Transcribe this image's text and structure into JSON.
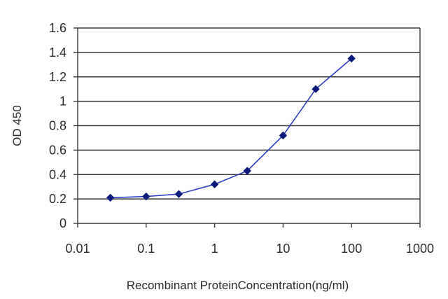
{
  "chart_data": {
    "type": "line",
    "title": "",
    "xlabel": "Recombinant ProteinConcentration(ng/ml)",
    "ylabel": "OD 450",
    "xscale": "log",
    "xlim": [
      0.01,
      1000
    ],
    "ylim": [
      0,
      1.6
    ],
    "x_ticks": [
      "0.01",
      "0.1",
      "1",
      "10",
      "100",
      "1000"
    ],
    "y_ticks": [
      "0",
      "0.2",
      "0.4",
      "0.6",
      "0.8",
      "1",
      "1.2",
      "1.4",
      "1.6"
    ],
    "grid": "horizontal",
    "legend": "none",
    "series": [
      {
        "x": [
          0.03,
          0.1,
          0.3,
          1,
          3,
          10,
          30,
          100
        ],
        "values": [
          0.21,
          0.22,
          0.24,
          0.32,
          0.43,
          0.72,
          1.1,
          1.35
        ],
        "color": "#2f3fbf",
        "marker": "diamond",
        "marker_color": "#0b1a7a"
      }
    ]
  }
}
